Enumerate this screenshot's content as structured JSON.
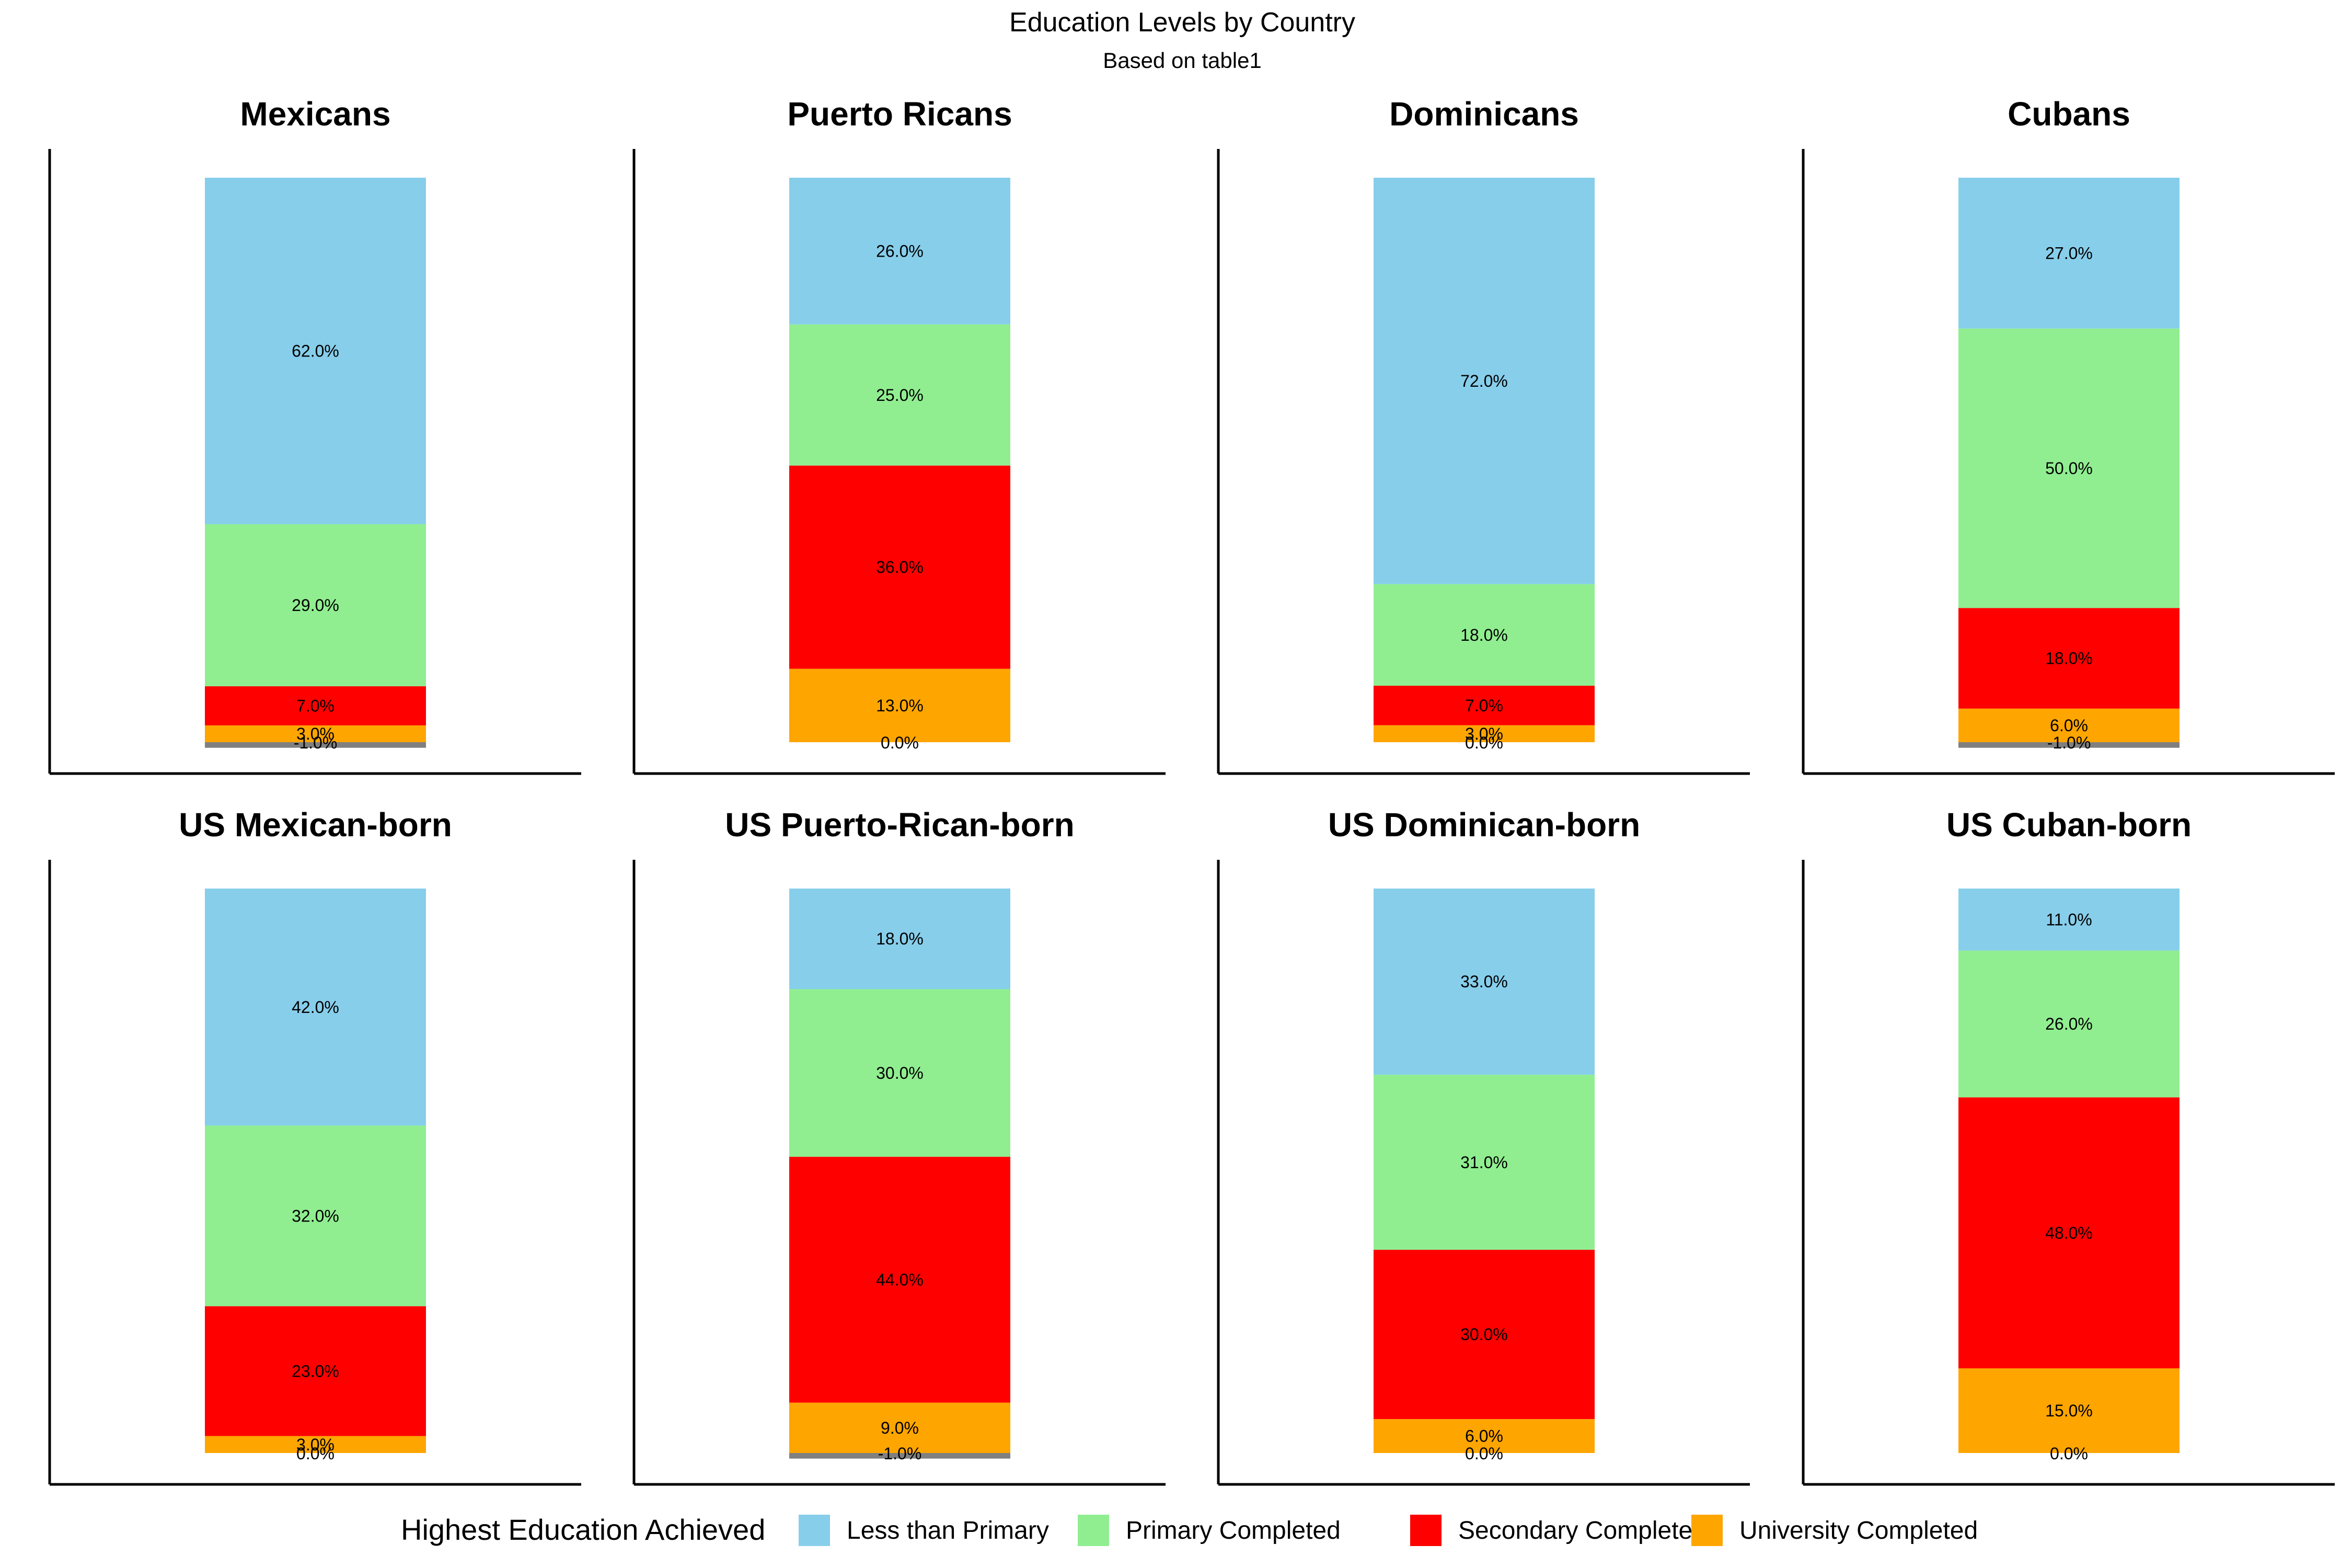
{
  "chart_data": {
    "type": "bar",
    "stacked": true,
    "title": "Education Levels by Country",
    "subtitle": "Based on table1",
    "legend": {
      "title": "Highest Education Achieved",
      "placement": "bottom",
      "entries": [
        {
          "name": "Less than Primary",
          "color": "#87CEEB"
        },
        {
          "name": "Primary Completed",
          "color": "#90EE90"
        },
        {
          "name": "Secondary Completed",
          "color": "#FF0000"
        },
        {
          "name": "University Completed",
          "color": "#FFA500"
        }
      ]
    },
    "extra_color": "#808080",
    "grid": false,
    "panels": [
      {
        "title": "Mexicans",
        "less_than_primary": 62,
        "primary": 29,
        "secondary": 7,
        "university": 3,
        "extra": -1
      },
      {
        "title": "Puerto Ricans",
        "less_than_primary": 26,
        "primary": 25,
        "secondary": 36,
        "university": 13,
        "extra": 0
      },
      {
        "title": "Dominicans",
        "less_than_primary": 72,
        "primary": 18,
        "secondary": 7,
        "university": 3,
        "extra": 0
      },
      {
        "title": "Cubans",
        "less_than_primary": 27,
        "primary": 50,
        "secondary": 18,
        "university": 6,
        "extra": -1
      },
      {
        "title": "US Mexican-born",
        "less_than_primary": 42,
        "primary": 32,
        "secondary": 23,
        "university": 3,
        "extra": 0
      },
      {
        "title": "US Puerto-Rican-born",
        "less_than_primary": 18,
        "primary": 30,
        "secondary": 44,
        "university": 9,
        "extra": -1
      },
      {
        "title": "US Dominican-born",
        "less_than_primary": 33,
        "primary": 31,
        "secondary": 30,
        "university": 6,
        "extra": 0
      },
      {
        "title": "US Cuban-born",
        "less_than_primary": 11,
        "primary": 26,
        "secondary": 48,
        "university": 15,
        "extra": 0
      }
    ]
  }
}
